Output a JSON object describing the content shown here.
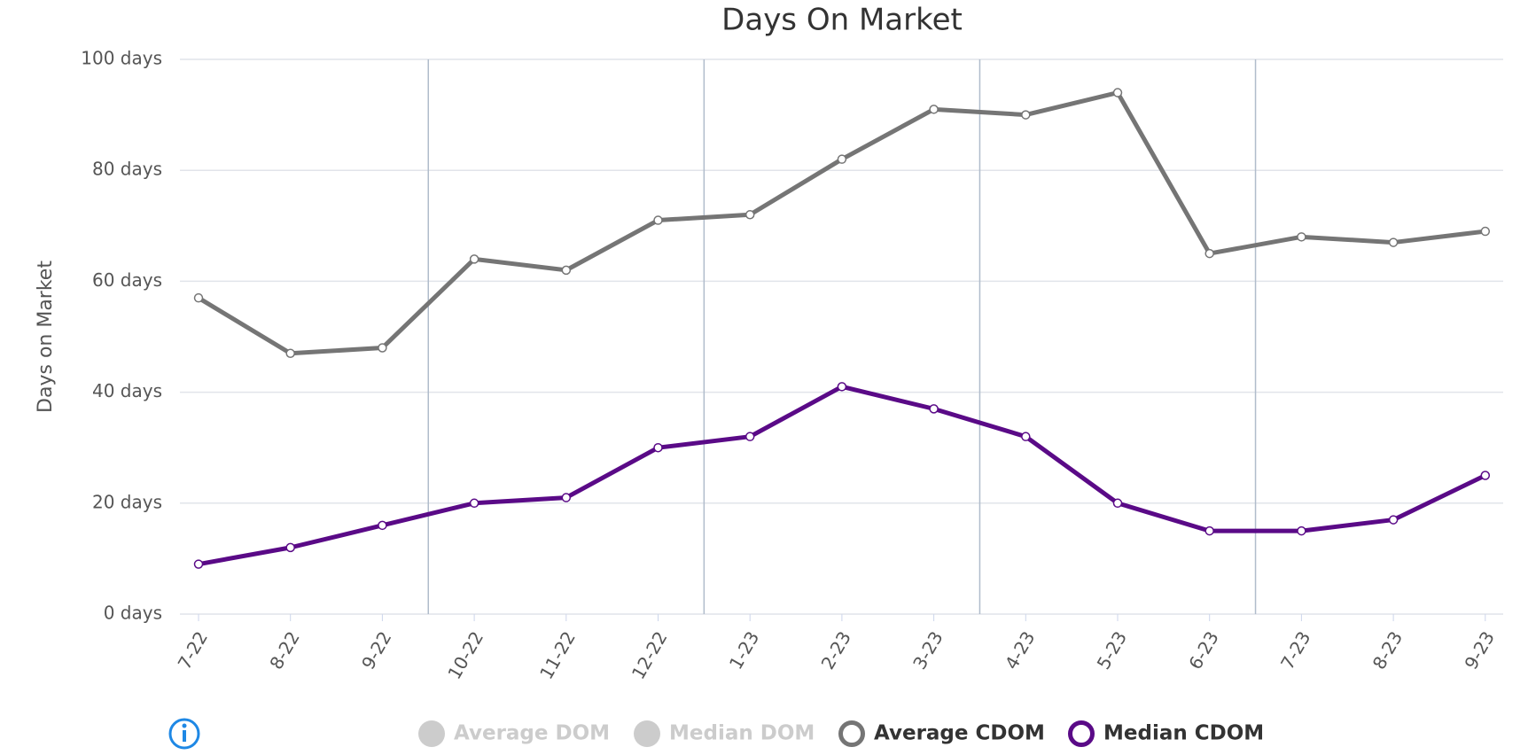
{
  "chart_data": {
    "type": "line",
    "title": "Days On Market",
    "y_label": "Days on Market",
    "categories": [
      "7-22",
      "8-22",
      "9-22",
      "10-22",
      "11-22",
      "12-22",
      "1-23",
      "2-23",
      "3-23",
      "4-23",
      "5-23",
      "6-23",
      "7-23",
      "8-23",
      "9-23"
    ],
    "series": [
      {
        "name": "Average CDOM",
        "color": "#757575",
        "values": [
          57,
          47,
          48,
          64,
          62,
          71,
          72,
          82,
          91,
          90,
          94,
          65,
          68,
          67,
          69
        ]
      },
      {
        "name": "Median CDOM",
        "color": "#5a0a87",
        "values": [
          9,
          12,
          16,
          20,
          21,
          30,
          32,
          41,
          37,
          32,
          20,
          15,
          15,
          17,
          25
        ]
      }
    ],
    "legend_inactive": [
      "Average DOM",
      "Median DOM"
    ],
    "ylim": [
      0,
      100
    ],
    "yticks": [
      {
        "value": 0,
        "label": "0 days"
      },
      {
        "value": 20,
        "label": "20 days"
      },
      {
        "value": 40,
        "label": "40 days"
      },
      {
        "value": 60,
        "label": "60 days"
      },
      {
        "value": 80,
        "label": "80 days"
      },
      {
        "value": 100,
        "label": "100 days"
      }
    ],
    "grid": true
  }
}
